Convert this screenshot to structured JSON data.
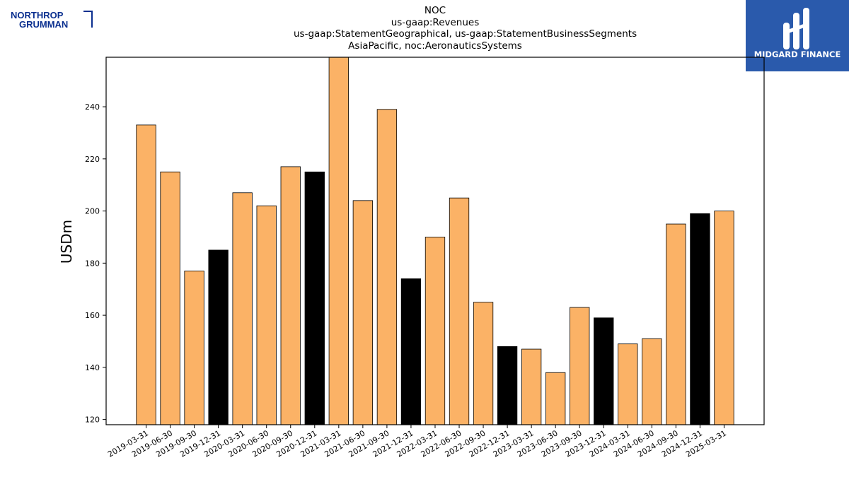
{
  "logos": {
    "left": {
      "line1": "NORTHROP",
      "line2": "GRUMMAN",
      "color": "#0a2f8f"
    },
    "right": {
      "text": "MIDGARD FINANCE",
      "bg": "#2a5aac"
    }
  },
  "chart_data": {
    "type": "bar",
    "title_lines": [
      "NOC",
      "us-gaap:Revenues",
      "us-gaap:StatementGeographical, us-gaap:StatementBusinessSegments",
      "AsiaPacific, noc:AeronauticsSystems"
    ],
    "ylabel": "USDm",
    "xlabel": "",
    "ylim": [
      118,
      259
    ],
    "yticks": [
      120,
      140,
      160,
      180,
      200,
      220,
      240
    ],
    "grid": false,
    "colors": {
      "quarter": "#fbb266",
      "year_end": "#000000",
      "edge": "#000000"
    },
    "categories": [
      "2019-03-31",
      "2019-06-30",
      "2019-09-30",
      "2019-12-31",
      "2020-03-31",
      "2020-06-30",
      "2020-09-30",
      "2020-12-31",
      "2021-03-31",
      "2021-06-30",
      "2021-09-30",
      "2021-12-31",
      "2022-03-31",
      "2022-06-30",
      "2022-09-30",
      "2022-12-31",
      "2023-03-31",
      "2023-06-30",
      "2023-09-30",
      "2023-12-31",
      "2024-03-31",
      "2024-06-30",
      "2024-09-30",
      "2024-12-31",
      "2025-03-31"
    ],
    "values": [
      233,
      215,
      177,
      185,
      207,
      202,
      217,
      215,
      261,
      204,
      239,
      174,
      190,
      205,
      165,
      148,
      147,
      138,
      163,
      159,
      149,
      151,
      195,
      199,
      200
    ]
  }
}
